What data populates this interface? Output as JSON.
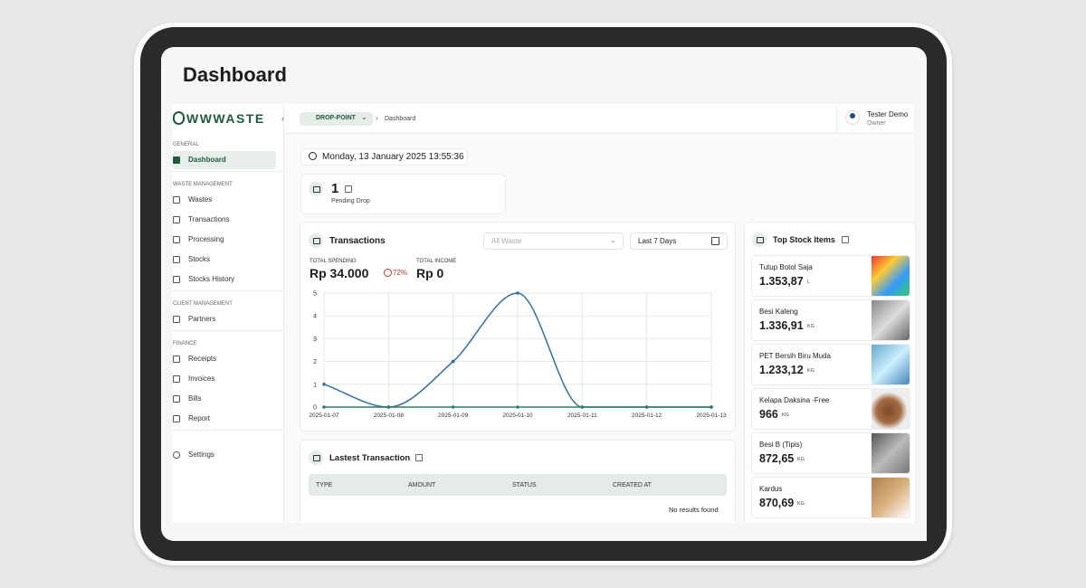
{
  "page": {
    "title": "Dashboard"
  },
  "sidebar": {
    "logo": "WWWASTE",
    "sections": [
      {
        "heading": "GENERAL",
        "items": [
          "Dashboard"
        ]
      },
      {
        "heading": "WASTE MANAGEMENT",
        "items": [
          "Wastes",
          "Transactions",
          "Processing",
          "Stocks",
          "Stocks History"
        ]
      },
      {
        "heading": "CLIENT MANAGEMENT",
        "items": [
          "Partners"
        ]
      },
      {
        "heading": "FINANCE",
        "items": [
          "Receipts",
          "Invoices",
          "Bills",
          "Report"
        ]
      }
    ],
    "settings": "Settings"
  },
  "topbar": {
    "location": "DROP-POINT",
    "breadcrumb": "Dashboard",
    "user_name": "Tester Demo",
    "user_role": "Owner"
  },
  "datetime": "Monday, 13 January 2025 13:55:36",
  "pending": {
    "count": 1,
    "label": "Pending Drop"
  },
  "transactions": {
    "title": "Transactions",
    "filter": "All Waste",
    "range": "Last 7 Days",
    "spending_label": "TOTAL SPENDING",
    "spending": "Rp 34.000",
    "change": "72%",
    "income_label": "TOTAL INCOME",
    "income": "Rp 0"
  },
  "chart_data": {
    "type": "line",
    "categories": [
      "2025-01-07",
      "2025-01-08",
      "2025-01-09",
      "2025-01-10",
      "2025-01-11",
      "2025-01-12",
      "2025-01-13"
    ],
    "series": [
      {
        "color": "#2f6ea6",
        "values": [
          1,
          0,
          2,
          5,
          0,
          0,
          0
        ]
      },
      {
        "color": "#2e7d5b",
        "values": [
          0,
          0,
          0,
          0,
          0,
          0,
          0
        ]
      }
    ],
    "ylim": [
      0,
      5
    ],
    "yticks": [
      0,
      1,
      2,
      3,
      4,
      5
    ],
    "grid": true
  },
  "latest": {
    "title": "Lastest Transaction",
    "columns": [
      "TYPE",
      "AMOUNT",
      "STATUS",
      "CREATED AT"
    ],
    "empty": "No results found"
  },
  "top_stock": {
    "title": "Top Stock Items",
    "items": [
      {
        "name": "Tutup Botol Saja",
        "value": "1.353,87",
        "unit": "L"
      },
      {
        "name": "Besi Kaleng",
        "value": "1.336,91",
        "unit": "KG"
      },
      {
        "name": "PET Bersih Biru Muda",
        "value": "1.233,12",
        "unit": "KG"
      },
      {
        "name": "Kelapa Daksina -Free",
        "value": "966",
        "unit": "KG"
      },
      {
        "name": "Besi B (Tipis)",
        "value": "872,65",
        "unit": "KG"
      },
      {
        "name": "Kardus",
        "value": "870,69",
        "unit": "KG"
      }
    ]
  }
}
